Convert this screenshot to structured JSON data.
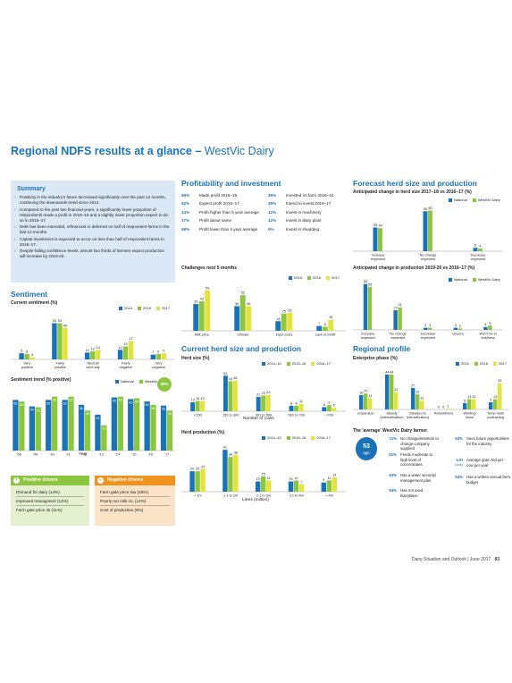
{
  "title": "Regional NDFS results at a glance",
  "title_region": "WestVic Dairy",
  "colors": {
    "blue": "#1a73b8",
    "green": "#8cc63f",
    "yellow": "#e6e23c",
    "orange": "#f0921e"
  },
  "summary": {
    "heading": "Summary",
    "items": [
      "Positivity in the industry's future decreased significantly over the past 12 months, continuing the downwards trend since 2014.",
      "Compared to the past two financial years, a significantly lower proportion of respondents made a profit in 2015–16 and a slightly lower proportion expect to do so in 2016–17.",
      "Debt has been extended, refinanced or deferred on half of respondent farms in the last 12 months.",
      "Capital investment is expected to occur on less than half of respondent farms in 2016–17.",
      "Despite falling confidence levels, almost two thirds of farmers expect production will increase by 2019-20."
    ]
  },
  "sentiment": {
    "heading": "Sentiment",
    "current_title": "Current sentiment (%)",
    "trend_title": "Sentiment trend (% positive)",
    "trend_xlabel": "Year",
    "trend_callout": "49%"
  },
  "drivers": {
    "positive_title": "Positive drivers",
    "positive": [
      "Demand for dairy (14%)",
      "Improved managment (14%)",
      "Farm gate price ok (11%)"
    ],
    "negative_title": "Negative drivers",
    "negative": [
      "Farm gate price low (25%)",
      "Poorly run milk co. (14%)",
      "Cost of production (6%)"
    ]
  },
  "profitability": {
    "heading": "Profitability and investment",
    "left": [
      {
        "pct": "59%",
        "label": "Made profit 2015–16"
      },
      {
        "pct": "52%",
        "label": "Expect profit 2016–17"
      },
      {
        "pct": "14%",
        "label": "Profit higher than 5 year average"
      },
      {
        "pct": "17%",
        "label": "Profit about same"
      },
      {
        "pct": "69%",
        "label": "Profit lower than 5 year average"
      }
    ],
    "right": [
      {
        "pct": "39%",
        "label": "Invested on farm 2015–16"
      },
      {
        "pct": "39%",
        "label": "Intend to invest 2016–17"
      },
      {
        "pct": "12%",
        "label": "Invest in machinery"
      },
      {
        "pct": "12%",
        "label": "Invest in dairy plant"
      },
      {
        "pct": "0%",
        "label": "Invest in shedding"
      }
    ],
    "challenges_title": "Challenges next 5 months"
  },
  "herd_size": {
    "heading": "Current herd size and production",
    "size_title": "Herd size (%)",
    "size_xlabel": "Number of cows",
    "prod_title": "Herd production (%)",
    "prod_xlabel": "Litres (million)"
  },
  "forecast": {
    "heading": "Forecast herd size and production",
    "size_title": "Anticipated change in herd size 2017–18 vs 2016–17 (%)",
    "prod_title": "Anticipated change in production 2019-20 vs 2016–17 (%)"
  },
  "regional": {
    "heading": "Regional profile",
    "phase_title": "Enterprise phase (%)",
    "farmer_title": "The 'average' WestVic Dairy farmer",
    "age_label": "age",
    "age_value": "53",
    "left": [
      {
        "pct": "71%",
        "label": "No change/intention to change company supplied"
      },
      {
        "pct": "61%",
        "label": "Feeds moderate to high level of concentrates"
      },
      {
        "pct": "63%",
        "label": "Has a water security/ management plan"
      },
      {
        "pct": "94%",
        "label": "Has not used DairyBase"
      }
    ],
    "right": [
      {
        "pct": "63%",
        "label": "Sees future opportunities for the industry"
      },
      {
        "pct": "1.5t",
        "label": "Average grain fed per cow per year",
        "sub": "(cow)"
      },
      {
        "pct": "54%",
        "label": "Has a written annual farm budget"
      }
    ]
  },
  "footer": {
    "text": "Dairy Situation and Outlook | June 2017",
    "page": "83"
  },
  "chart_data": [
    {
      "id": "current_sentiment",
      "type": "bar",
      "title": "Current sentiment (%)",
      "categories": [
        "Very positive",
        "Fairly positive",
        "Neutral/ can't say",
        "Fairly negative",
        "Very negative"
      ],
      "series": [
        {
          "name": "2014",
          "values": [
            9,
            53,
            10,
            14,
            7
          ]
        },
        {
          "name": "2016",
          "values": [
            8,
            53,
            12,
            19,
            8
          ]
        },
        {
          "name": "2017",
          "values": [
            3,
            46,
            14,
            27,
            9
          ]
        }
      ]
    },
    {
      "id": "sentiment_trend",
      "type": "bar",
      "title": "Sentiment trend (% positive)",
      "xlabel": "Year",
      "categories": [
        "'08",
        "'09",
        "'10",
        "'11",
        "'12",
        "'13",
        "'14",
        "'15",
        "'16",
        "'17"
      ],
      "series": [
        {
          "name": "National",
          "values": [
            62,
            54,
            62,
            62,
            56,
            44,
            65,
            63,
            60,
            55
          ]
        },
        {
          "name": "WestVic Dairy",
          "values": [
            60,
            53,
            66,
            66,
            49,
            31,
            66,
            64,
            56,
            49
          ]
        }
      ]
    },
    {
      "id": "challenges",
      "type": "bar",
      "title": "Challenges next 5 months",
      "categories": [
        "Milk price",
        "Climate",
        "Input costs",
        "Lack of profit"
      ],
      "series": [
        {
          "name": "2015",
          "values": [
            39,
            36,
            14,
            7
          ]
        },
        {
          "name": "2016",
          "values": [
            43,
            52,
            25,
            6
          ]
        },
        {
          "name": "2017",
          "values": [
            59,
            36,
            26,
            16
          ]
        }
      ]
    },
    {
      "id": "herd_size",
      "type": "bar",
      "title": "Herd size (%)",
      "xlabel": "Number of cows",
      "categories": [
        "<150",
        "150 to 300",
        "301 to 500",
        "501 to 700",
        ">700"
      ],
      "series": [
        {
          "name": "2014–15",
          "values": [
            13,
            52,
            21,
            8,
            6
          ]
        },
        {
          "name": "2015–16",
          "values": [
            15,
            44,
            23,
            8,
            9
          ]
        },
        {
          "name": "2016–17",
          "values": [
            15,
            45,
            24,
            11,
            5
          ]
        }
      ]
    },
    {
      "id": "herd_production",
      "type": "bar",
      "title": "Herd production (%)",
      "xlabel": "Litres (million)",
      "categories": [
        "< 1m",
        "1.1 to 2m",
        "2.1 to 3m",
        "3.1 to 4m",
        "> 4m"
      ],
      "series": [
        {
          "name": "2014–15",
          "values": [
            20,
            41,
            10,
            10,
            9
          ]
        },
        {
          "name": "2015–16",
          "values": [
            20,
            34,
            15,
            11,
            11
          ]
        },
        {
          "name": "2016–17",
          "values": [
            22,
            36,
            11,
            7,
            14
          ]
        }
      ]
    },
    {
      "id": "forecast_herd_size",
      "type": "bar",
      "title": "Anticipated change in herd size 2017–18 vs 2016–17 (%)",
      "categories": [
        "Increase expected",
        "No change expected",
        "Decrease expected"
      ],
      "series": [
        {
          "name": "National",
          "values": [
            35,
            59,
            5
          ]
        },
        {
          "name": "WestVic Dairy",
          "values": [
            34,
            60,
            4
          ]
        }
      ]
    },
    {
      "id": "forecast_production",
      "type": "bar",
      "title": "Anticipated change in production 2019-20 vs 2016–17 (%)",
      "categories": [
        "Increase expected",
        "No change expected",
        "Decrease expected",
        "Unsure",
        "Won't be in business"
      ],
      "series": [
        {
          "name": "National",
          "values": [
            63,
            27,
            3,
            3,
            4
          ]
        },
        {
          "name": "WestVic Dairy",
          "values": [
            59,
            31,
            3,
            2,
            6
          ]
        }
      ]
    },
    {
      "id": "enterprise_phase",
      "type": "bar",
      "title": "Enterprise phase (%)",
      "categories": [
        "Expansion",
        "Steady (intensification)",
        "Steady (no intensification)",
        "Rebuild/new",
        "Winding down",
        "Temp hold/ contracting"
      ],
      "series": [
        {
          "name": "2015",
          "values": [
            18,
            44,
            27,
            0,
            8,
            9
          ]
        },
        {
          "name": "2016",
          "values": [
            20,
            44,
            19,
            0,
            13,
            13
          ]
        },
        {
          "name": "2017",
          "values": [
            14,
            22,
            11,
            1,
            13,
            33
          ]
        }
      ]
    }
  ]
}
